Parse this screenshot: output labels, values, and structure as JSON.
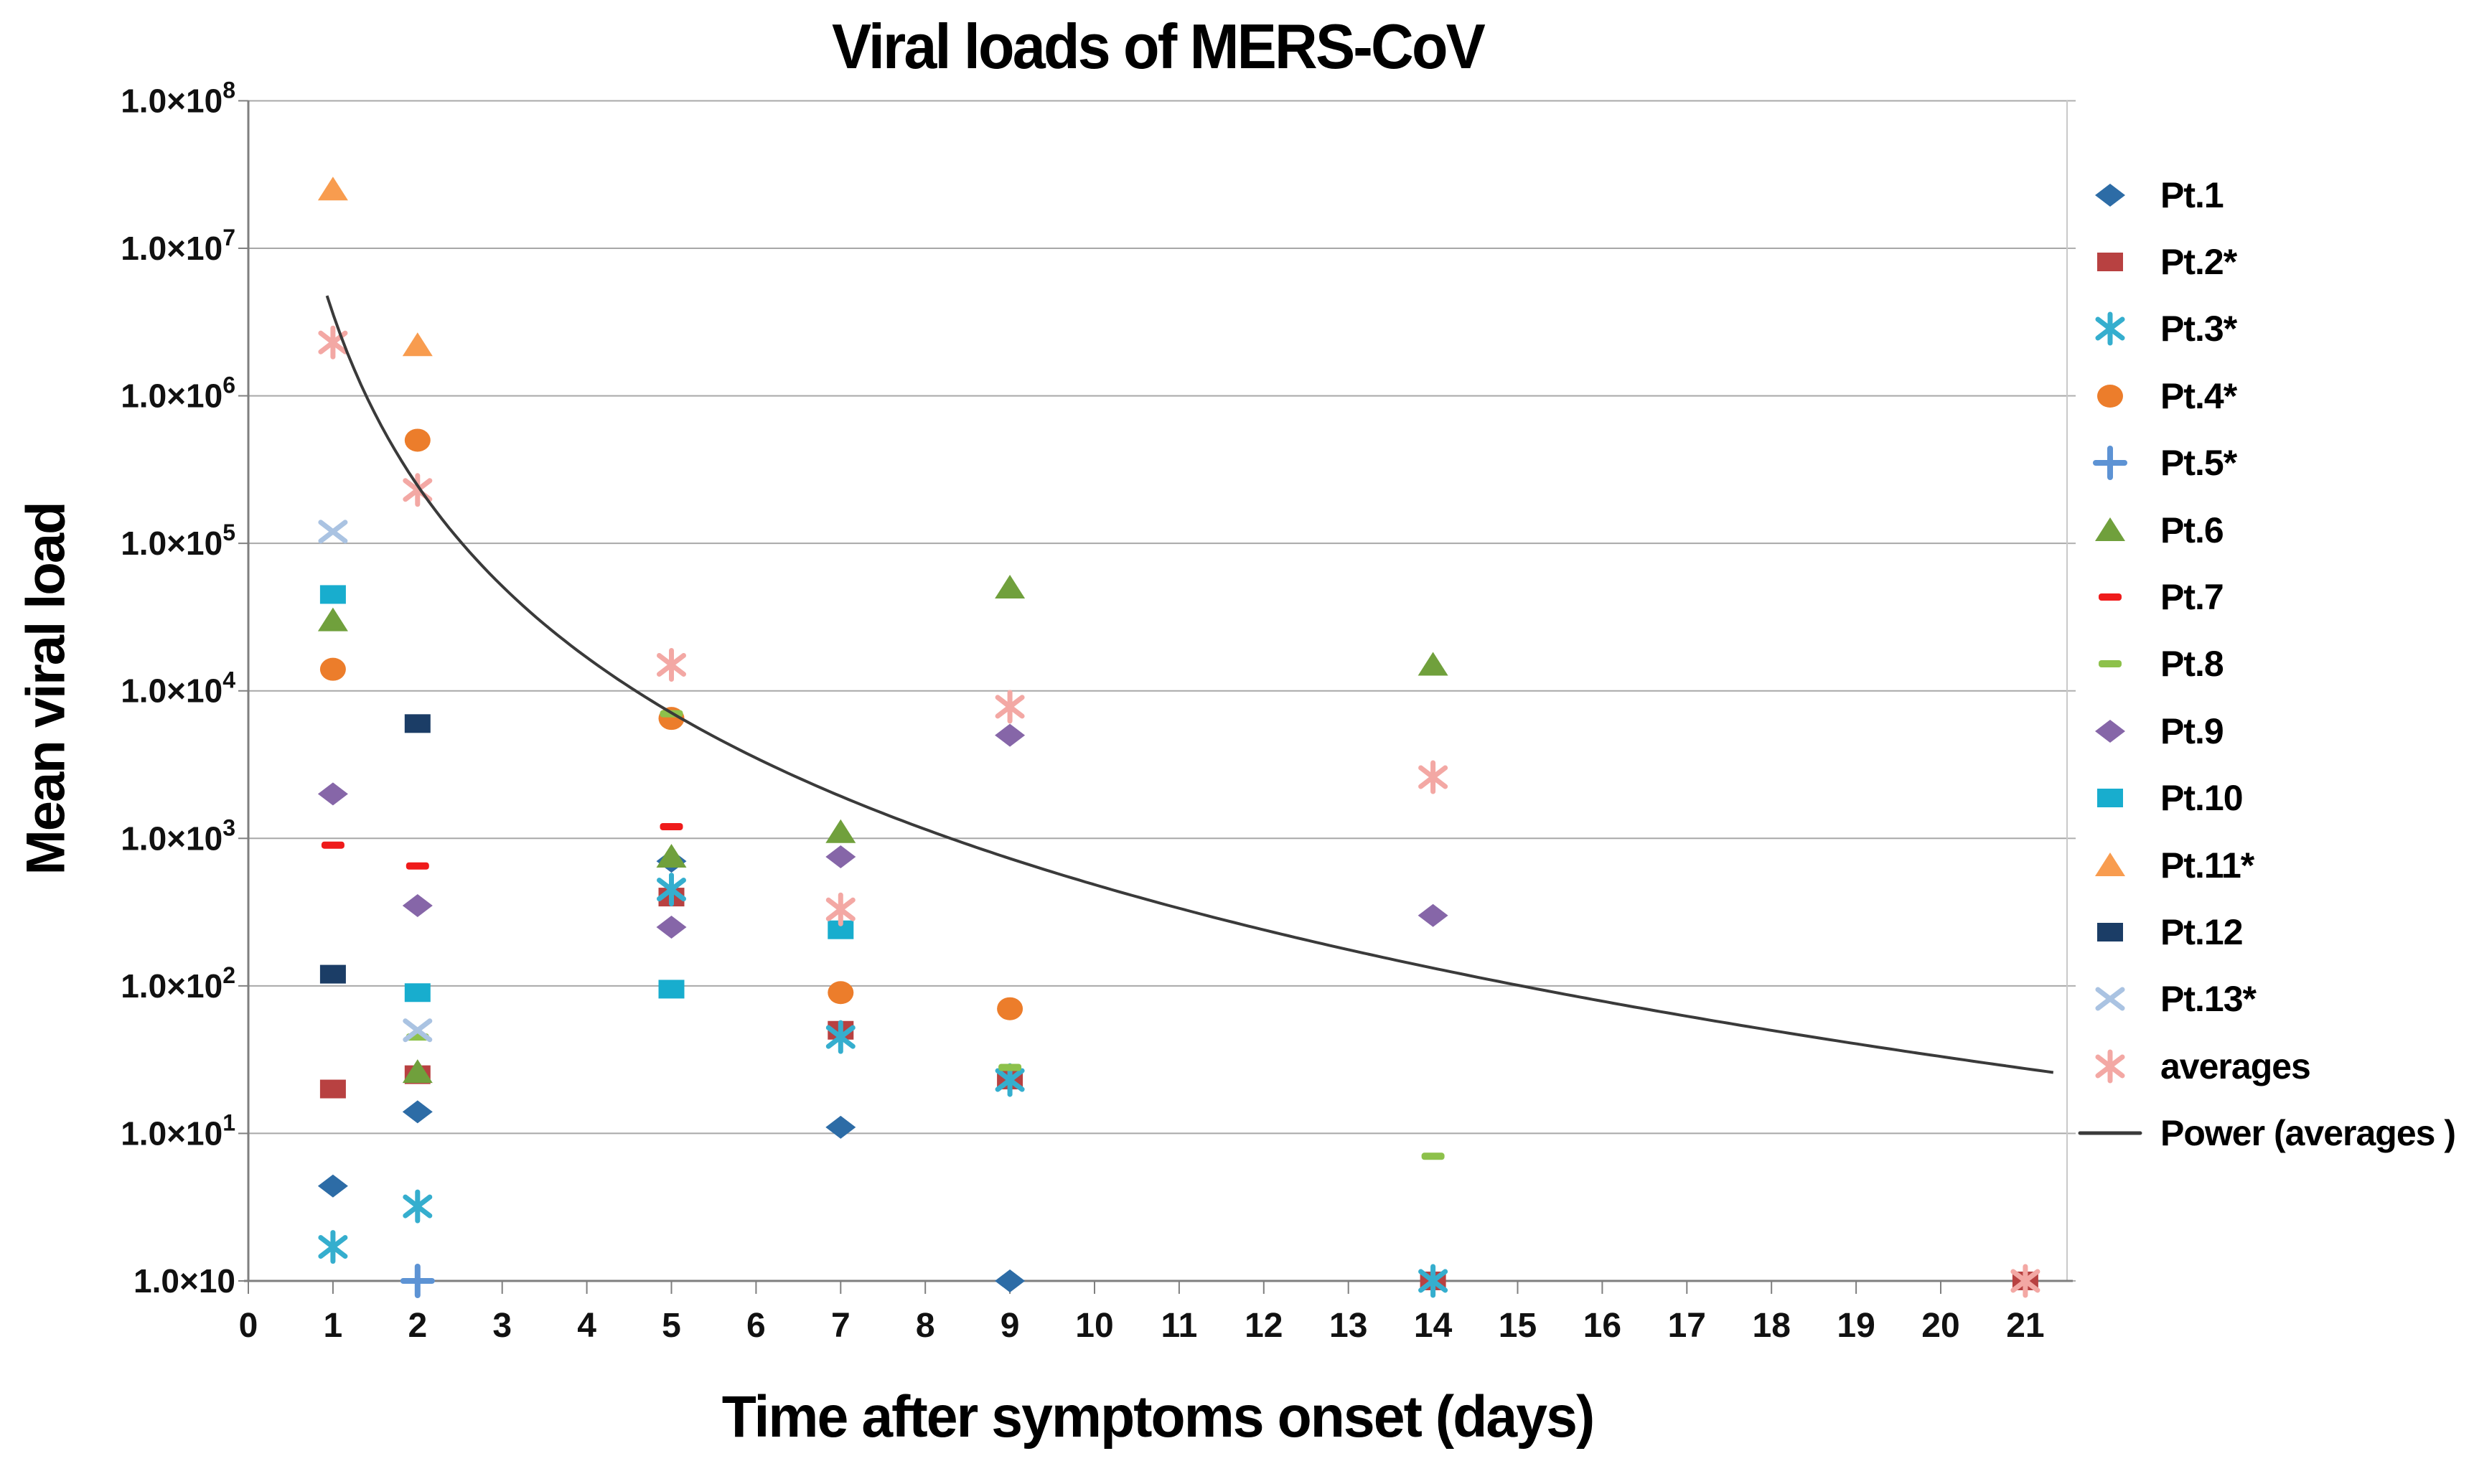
{
  "title": "Viral loads of MERS-CoV",
  "x_axis": {
    "label": "Time after symptoms onset (days)",
    "ticks": [
      "0",
      "1",
      "2",
      "3",
      "4",
      "5",
      "6",
      "7",
      "8",
      "9",
      "10",
      "11",
      "12",
      "13",
      "14",
      "15",
      "16",
      "17",
      "18",
      "19",
      "20",
      "21"
    ]
  },
  "y_axis": {
    "label": "Mean viral load",
    "ticks": [
      {
        "text": "1.0×10",
        "sup": "8"
      },
      {
        "text": "1.0×10",
        "sup": "7"
      },
      {
        "text": "1.0×10",
        "sup": "6"
      },
      {
        "text": "1.0×10",
        "sup": "5"
      },
      {
        "text": "1.0×10",
        "sup": "4"
      },
      {
        "text": "1.0×10",
        "sup": "3"
      },
      {
        "text": "1.0×10",
        "sup": "2"
      },
      {
        "text": "1.0×10",
        "sup": "1"
      },
      {
        "text": "1.0×10",
        "sup": ""
      }
    ]
  },
  "legend": [
    {
      "label": "Pt.1",
      "marker": "diamond",
      "color": "#2D6CA6"
    },
    {
      "label": "Pt.2*",
      "marker": "square",
      "color": "#B84141"
    },
    {
      "label": "Pt.3*",
      "marker": "asterisk",
      "color": "#35AECE"
    },
    {
      "label": "Pt.4*",
      "marker": "circle",
      "color": "#EC7D2B"
    },
    {
      "label": "Pt.5*",
      "marker": "plus",
      "color": "#5D93D4"
    },
    {
      "label": "Pt.6",
      "marker": "triangle",
      "color": "#70A03C"
    },
    {
      "label": "Pt.7",
      "marker": "dash",
      "color": "#EF1B1B"
    },
    {
      "label": "Pt.8",
      "marker": "dash",
      "color": "#8DC14B"
    },
    {
      "label": "Pt.9",
      "marker": "diamond",
      "color": "#8666A8"
    },
    {
      "label": "Pt.10",
      "marker": "square",
      "color": "#18ADCE"
    },
    {
      "label": "Pt.11*",
      "marker": "triangle",
      "color": "#F89C4F"
    },
    {
      "label": "Pt.12",
      "marker": "square",
      "color": "#1B3D66"
    },
    {
      "label": "Pt.13*",
      "marker": "x",
      "color": "#AAC3E2"
    },
    {
      "label": "averages",
      "marker": "asterisk",
      "color": "#F3A8A4"
    },
    {
      "label": "Power (averages )",
      "marker": "line",
      "color": "#3A3A3A"
    }
  ],
  "chart_data": {
    "type": "scatter",
    "title": "Viral loads of MERS-CoV",
    "xlabel": "Time after symptoms onset (days)",
    "ylabel": "Mean viral load",
    "x_scale": "linear",
    "y_scale": "log10",
    "xlim": [
      0,
      21.5
    ],
    "ylim": [
      1,
      100000000
    ],
    "grid": "horizontal",
    "legend_position": "right",
    "series": [
      {
        "name": "Pt.1",
        "marker": "diamond",
        "color": "#2D6CA6",
        "points": [
          [
            1,
            4.4
          ],
          [
            2,
            14
          ],
          [
            5,
            700
          ],
          [
            7,
            11
          ],
          [
            9,
            1
          ]
        ]
      },
      {
        "name": "Pt.2*",
        "marker": "square",
        "color": "#B84141",
        "points": [
          [
            1,
            20
          ],
          [
            2,
            25
          ],
          [
            5,
            400
          ],
          [
            7,
            50
          ],
          [
            9,
            23
          ],
          [
            14,
            1
          ],
          [
            21,
            1
          ]
        ]
      },
      {
        "name": "Pt.3*",
        "marker": "asterisk",
        "color": "#35AECE",
        "points": [
          [
            1,
            1.7
          ],
          [
            2,
            3.2
          ],
          [
            5,
            450
          ],
          [
            7,
            45
          ],
          [
            9,
            23
          ],
          [
            14,
            1
          ]
        ]
      },
      {
        "name": "Pt.4*",
        "marker": "circle",
        "color": "#EC7D2B",
        "points": [
          [
            1,
            14000
          ],
          [
            2,
            500000
          ],
          [
            5,
            6500
          ],
          [
            7,
            90
          ],
          [
            9,
            70
          ]
        ]
      },
      {
        "name": "Pt.5*",
        "marker": "plus",
        "color": "#5D93D4",
        "points": [
          [
            2,
            1
          ]
        ]
      },
      {
        "name": "Pt.6",
        "marker": "triangle",
        "color": "#70A03C",
        "points": [
          [
            1,
            30000
          ],
          [
            2,
            26
          ],
          [
            5,
            750
          ],
          [
            7,
            1100
          ],
          [
            9,
            50000
          ],
          [
            14,
            15000
          ]
        ]
      },
      {
        "name": "Pt.7",
        "marker": "dash",
        "color": "#EF1B1B",
        "points": [
          [
            1,
            900
          ],
          [
            2,
            650
          ],
          [
            5,
            1200
          ]
        ]
      },
      {
        "name": "Pt.8",
        "marker": "dash",
        "color": "#8DC14B",
        "points": [
          [
            2,
            45
          ],
          [
            5,
            7000
          ],
          [
            9,
            28
          ],
          [
            14,
            7
          ]
        ]
      },
      {
        "name": "Pt.9",
        "marker": "diamond",
        "color": "#8666A8",
        "points": [
          [
            1,
            2000
          ],
          [
            2,
            350
          ],
          [
            5,
            250
          ],
          [
            7,
            750
          ],
          [
            9,
            5000
          ],
          [
            14,
            300
          ]
        ]
      },
      {
        "name": "Pt.10",
        "marker": "square",
        "color": "#18ADCE",
        "points": [
          [
            1,
            45000
          ],
          [
            2,
            90
          ],
          [
            5,
            95
          ],
          [
            7,
            240
          ]
        ]
      },
      {
        "name": "Pt.11*",
        "marker": "triangle",
        "color": "#F89C4F",
        "points": [
          [
            1,
            25000000
          ],
          [
            2,
            2200000
          ]
        ]
      },
      {
        "name": "Pt.12",
        "marker": "square",
        "color": "#1B3D66",
        "points": [
          [
            1,
            120
          ],
          [
            2,
            6000
          ]
        ]
      },
      {
        "name": "Pt.13*",
        "marker": "x",
        "color": "#AAC3E2",
        "points": [
          [
            1,
            120000
          ],
          [
            2,
            50
          ]
        ]
      },
      {
        "name": "averages",
        "marker": "asterisk",
        "color": "#F3A8A4",
        "points": [
          [
            1,
            2300000
          ],
          [
            2,
            230000
          ],
          [
            5,
            15000
          ],
          [
            7,
            330
          ],
          [
            9,
            7800
          ],
          [
            14,
            2600
          ],
          [
            21,
            1
          ]
        ]
      }
    ],
    "trend": {
      "name": "Power (averages )",
      "type": "power",
      "a": 3600000,
      "b": -3.87,
      "color": "#3A3A3A",
      "x_range": [
        0.93,
        21.4
      ]
    }
  }
}
